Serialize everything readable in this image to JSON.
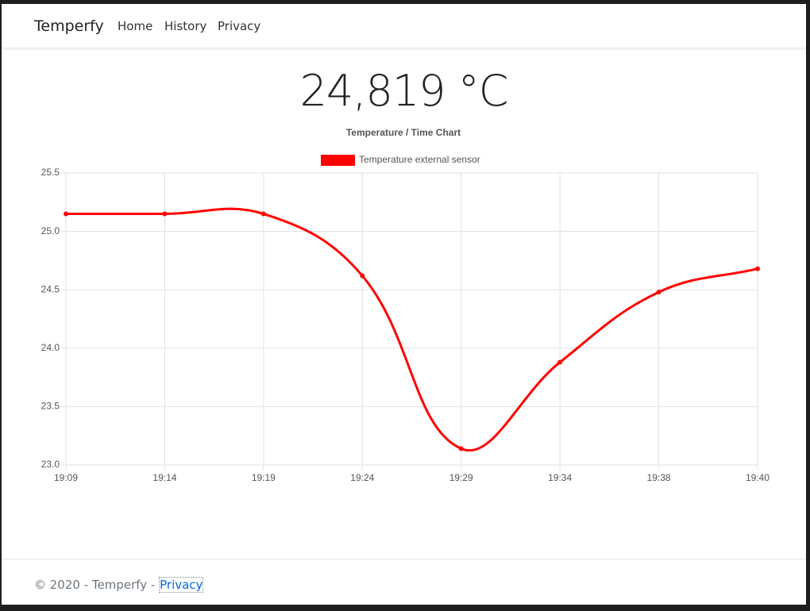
{
  "navbar": {
    "brand": "Temperfy",
    "links": [
      "Home",
      "History",
      "Privacy"
    ]
  },
  "reading": "24,819 °C",
  "chart_data": {
    "type": "line",
    "title": "Temperature / Time Chart",
    "categories": [
      "19:09",
      "19:14",
      "19:19",
      "19:24",
      "19:29",
      "19:34",
      "19:38",
      "19:40"
    ],
    "series": [
      {
        "name": "Temperature external sensor",
        "color": "#ff0000",
        "values": [
          25.15,
          25.15,
          25.15,
          24.62,
          23.14,
          23.88,
          24.48,
          24.68
        ]
      }
    ],
    "ylim": [
      23.0,
      25.5
    ],
    "yticks": [
      {
        "value": 23,
        "label": "23.0"
      },
      23.5,
      {
        "value": 24,
        "label": "24.0"
      },
      24.5,
      {
        "value": 25,
        "label": "25.0"
      },
      25.5
    ],
    "grid": true,
    "legend": "top"
  },
  "footer": {
    "text": "© 2020 - Temperfy -",
    "link": "Privacy"
  }
}
